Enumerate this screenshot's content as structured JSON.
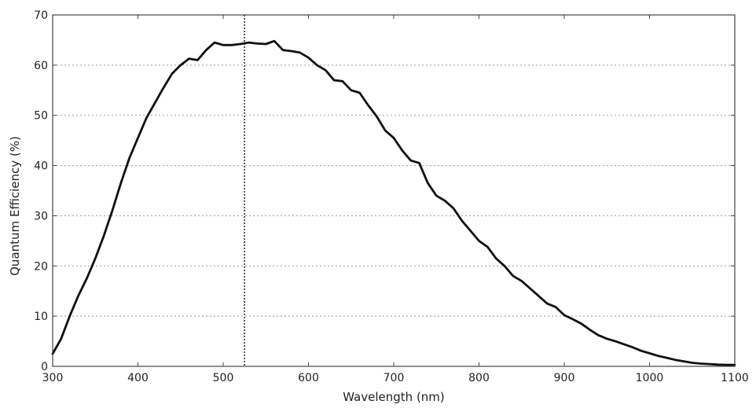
{
  "chart_data": {
    "type": "line",
    "title": "",
    "xlabel": "Wavelength (nm)",
    "ylabel": "Quantum Efficiency (%)",
    "xlim": [
      300,
      1100
    ],
    "ylim": [
      0,
      70
    ],
    "x_ticks": [
      300,
      400,
      500,
      600,
      700,
      800,
      900,
      1000,
      1100
    ],
    "y_ticks": [
      0,
      10,
      20,
      30,
      40,
      50,
      60,
      70
    ],
    "grid": "horizontal dotted",
    "reference_line": {
      "x": 525,
      "style": "dotted"
    },
    "colors": {
      "line": "#111111",
      "grid": "#999999",
      "axes": "#444444"
    },
    "series": [
      {
        "x": [
          300,
          310,
          320,
          330,
          340,
          350,
          360,
          370,
          380,
          390,
          400,
          410,
          420,
          430,
          440,
          450,
          460,
          470,
          480,
          490,
          500,
          510,
          520,
          530,
          540,
          550,
          560,
          570,
          580,
          590,
          600,
          610,
          620,
          630,
          640,
          650,
          660,
          670,
          680,
          690,
          700,
          710,
          720,
          730,
          740,
          750,
          760,
          770,
          780,
          790,
          800,
          810,
          820,
          830,
          840,
          850,
          860,
          870,
          880,
          890,
          900,
          910,
          920,
          930,
          940,
          950,
          960,
          970,
          980,
          990,
          1000,
          1010,
          1020,
          1030,
          1040,
          1050,
          1060,
          1070,
          1080,
          1090,
          1100
        ],
        "y": [
          2.5,
          5.5,
          10,
          14,
          17.5,
          21.5,
          26,
          31,
          36.5,
          41.5,
          45.5,
          49.5,
          52.5,
          55.5,
          58.3,
          60,
          61.3,
          61,
          63,
          64.5,
          64,
          64,
          64.2,
          64.5,
          64.3,
          64.2,
          64.8,
          63,
          62.8,
          62.5,
          61.5,
          60,
          59,
          57,
          56.8,
          55,
          54.5,
          52,
          49.8,
          47,
          45.5,
          43,
          41,
          40.5,
          36.5,
          34,
          33,
          31.5,
          29,
          27,
          25,
          23.8,
          21.5,
          20,
          18,
          17,
          15.5,
          14,
          12.5,
          11.8,
          10.2,
          9.4,
          8.5,
          7.3,
          6.2,
          5.5,
          5,
          4.4,
          3.8,
          3.1,
          2.6,
          2.1,
          1.7,
          1.3,
          1,
          0.7,
          0.55,
          0.45,
          0.35,
          0.3,
          0.3
        ]
      }
    ]
  }
}
